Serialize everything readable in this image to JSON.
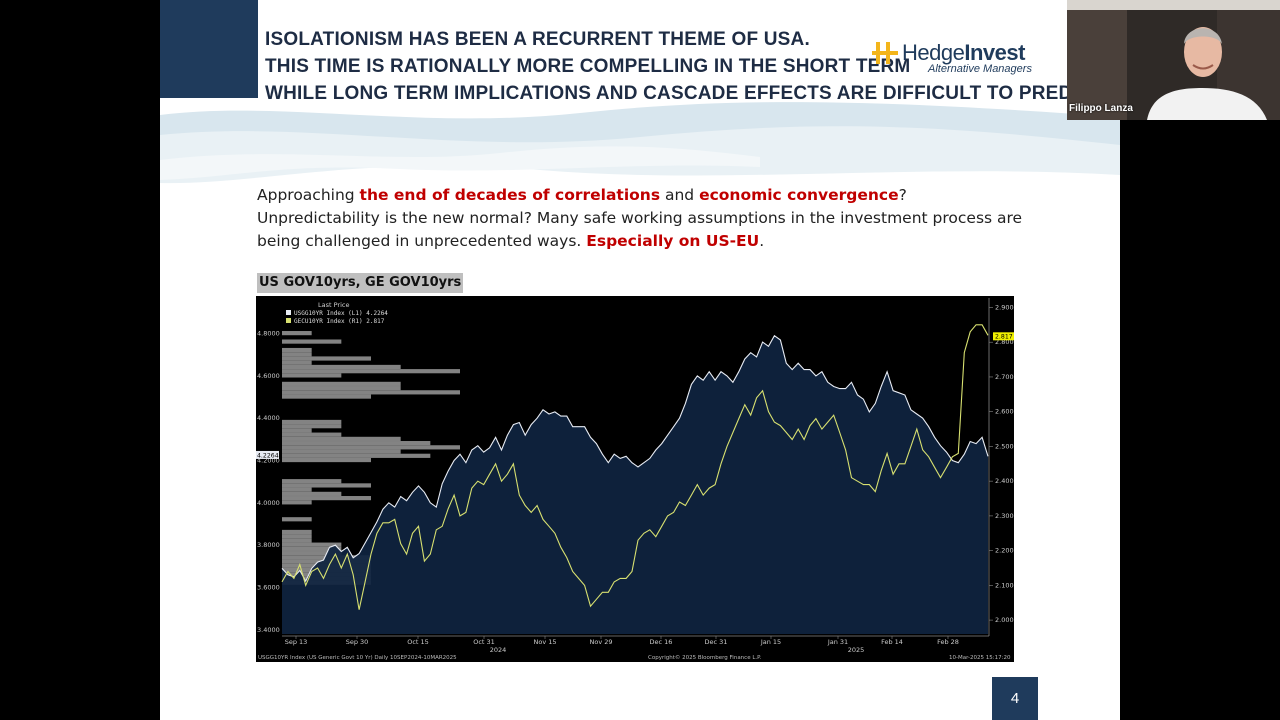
{
  "slide": {
    "title_lines": [
      "ISOLATIONISM HAS BEEN A RECURRENT THEME OF USA.",
      "THIS TIME IS RATIONALLY MORE COMPELLING IN THE SHORT TERM",
      "WHILE LONG TERM IMPLICATIONS AND CASCADE EFFECTS ARE DIFFICULT TO PREDICT…"
    ],
    "logo": {
      "name_regular": "Hedge",
      "name_bold": "Invest",
      "subtitle": "Alternative Managers"
    },
    "intro": {
      "p1": "Approaching ",
      "h1": "the end of decades of correlations",
      "p2": " and ",
      "h2": "economic convergence",
      "p3": "? Unpredictability is the new normal? Many safe working assumptions in the investment process are being challenged in unprecedented ways. ",
      "h3": "Especially on US-EU",
      "p4": "."
    },
    "chart_caption": "US GOV10yrs, GE GOV10yrs",
    "page_number": "4"
  },
  "webcam": {
    "participant_name": "Filippo Lanza"
  },
  "colors": {
    "slide_blue": "#1f3b5c",
    "highlight_red": "#c00000",
    "us_series": "#e8ecf4",
    "us_fill": "#0f2440",
    "ge_series": "#d7e070",
    "histogram": "#9a9a9a"
  },
  "chart_data": {
    "type": "line",
    "legend": {
      "title": "Last Price",
      "placement": "top-left",
      "entries": [
        "USGG10YR Index (L1) 4.2264",
        "GECU10YR Index (R1) 2.817"
      ]
    },
    "x_tick_labels": [
      "Sep 13",
      "Sep 30",
      "Oct 15",
      "Oct 31",
      "Nov 15",
      "Nov 29",
      "Dec 16",
      "Dec 31",
      "Jan 15",
      "Jan 31",
      "Feb 14",
      "Feb 28"
    ],
    "year_labels": [
      "2024",
      "2025"
    ],
    "left_axis": {
      "ticks": [
        "3.4000",
        "3.6000",
        "3.8000",
        "4.0000",
        "4.2000",
        "4.4000",
        "4.6000",
        "4.8000"
      ],
      "ylim": [
        3.38,
        4.94
      ],
      "last_value_label": "4.2264"
    },
    "right_axis": {
      "ticks": [
        "2.000",
        "2.100",
        "2.200",
        "2.300",
        "2.400",
        "2.500",
        "2.600",
        "2.700",
        "2.800",
        "2.900"
      ],
      "ylim": [
        1.96,
        2.91
      ],
      "last_value_label": "2.817"
    },
    "grid": false,
    "series": [
      {
        "name": "USGG10YR Index",
        "axis": "left",
        "values": [
          3.69,
          3.66,
          3.65,
          3.68,
          3.63,
          3.69,
          3.72,
          3.73,
          3.79,
          3.8,
          3.77,
          3.79,
          3.74,
          3.76,
          3.81,
          3.86,
          3.91,
          3.97,
          4.0,
          3.98,
          4.03,
          4.01,
          4.05,
          4.08,
          4.05,
          4.0,
          3.98,
          4.09,
          4.15,
          4.2,
          4.23,
          4.19,
          4.25,
          4.27,
          4.24,
          4.26,
          4.31,
          4.25,
          4.32,
          4.37,
          4.38,
          4.32,
          4.37,
          4.4,
          4.44,
          4.42,
          4.43,
          4.41,
          4.41,
          4.36,
          4.36,
          4.36,
          4.31,
          4.28,
          4.23,
          4.19,
          4.23,
          4.21,
          4.22,
          4.19,
          4.17,
          4.19,
          4.21,
          4.25,
          4.28,
          4.32,
          4.36,
          4.4,
          4.47,
          4.56,
          4.6,
          4.58,
          4.62,
          4.58,
          4.62,
          4.6,
          4.57,
          4.62,
          4.68,
          4.71,
          4.69,
          4.76,
          4.74,
          4.79,
          4.77,
          4.66,
          4.63,
          4.66,
          4.63,
          4.63,
          4.6,
          4.62,
          4.57,
          4.55,
          4.54,
          4.54,
          4.57,
          4.51,
          4.49,
          4.43,
          4.47,
          4.55,
          4.62,
          4.53,
          4.52,
          4.51,
          4.44,
          4.42,
          4.4,
          4.36,
          4.31,
          4.27,
          4.24,
          4.2,
          4.19,
          4.23,
          4.29,
          4.28,
          4.31,
          4.22
        ],
        "last_value": 4.2264
      },
      {
        "name": "GECU10YR Index",
        "axis": "right",
        "values": [
          2.11,
          2.14,
          2.12,
          2.16,
          2.1,
          2.14,
          2.15,
          2.12,
          2.16,
          2.19,
          2.15,
          2.19,
          2.13,
          2.03,
          2.11,
          2.19,
          2.25,
          2.28,
          2.28,
          2.29,
          2.22,
          2.19,
          2.25,
          2.27,
          2.17,
          2.19,
          2.26,
          2.27,
          2.32,
          2.36,
          2.3,
          2.31,
          2.38,
          2.4,
          2.39,
          2.42,
          2.45,
          2.4,
          2.42,
          2.45,
          2.36,
          2.33,
          2.31,
          2.33,
          2.29,
          2.27,
          2.25,
          2.21,
          2.18,
          2.14,
          2.12,
          2.1,
          2.04,
          2.06,
          2.08,
          2.08,
          2.11,
          2.12,
          2.12,
          2.14,
          2.23,
          2.25,
          2.26,
          2.24,
          2.27,
          2.3,
          2.31,
          2.34,
          2.33,
          2.36,
          2.39,
          2.36,
          2.38,
          2.39,
          2.45,
          2.5,
          2.54,
          2.58,
          2.62,
          2.59,
          2.64,
          2.66,
          2.6,
          2.57,
          2.56,
          2.54,
          2.52,
          2.55,
          2.52,
          2.56,
          2.58,
          2.55,
          2.57,
          2.59,
          2.54,
          2.49,
          2.41,
          2.4,
          2.39,
          2.39,
          2.37,
          2.43,
          2.48,
          2.42,
          2.45,
          2.45,
          2.5,
          2.55,
          2.49,
          2.47,
          2.44,
          2.41,
          2.44,
          2.47,
          2.48,
          2.77,
          2.83,
          2.85,
          2.85,
          2.82
        ],
        "last_value": 2.817
      }
    ],
    "histogram": {
      "axis": "left",
      "bins": [
        3.62,
        3.64,
        3.66,
        3.68,
        3.7,
        3.72,
        3.74,
        3.76,
        3.78,
        3.8,
        3.82,
        3.84,
        3.86,
        3.88,
        3.9,
        3.92,
        3.94,
        3.96,
        3.98,
        4.0,
        4.02,
        4.04,
        4.06,
        4.08,
        4.1,
        4.12,
        4.14,
        4.16,
        4.18,
        4.2,
        4.22,
        4.24,
        4.26,
        4.28,
        4.3,
        4.32,
        4.34,
        4.36,
        4.38,
        4.4,
        4.42,
        4.44,
        4.46,
        4.48,
        4.5,
        4.52,
        4.54,
        4.56,
        4.58,
        4.6,
        4.62,
        4.64,
        4.66,
        4.68,
        4.7,
        4.72,
        4.74,
        4.76,
        4.78,
        4.8
      ],
      "counts": [
        3,
        3,
        3,
        3,
        3,
        3,
        3,
        2,
        2,
        2,
        1,
        1,
        1,
        0,
        0,
        1,
        0,
        0,
        0,
        1,
        3,
        2,
        1,
        3,
        2,
        0,
        0,
        0,
        0,
        3,
        5,
        4,
        6,
        5,
        4,
        2,
        1,
        2,
        2,
        0,
        0,
        0,
        0,
        0,
        3,
        6,
        4,
        4,
        0,
        2,
        6,
        4,
        1,
        3,
        1,
        1,
        0,
        2,
        0,
        1
      ]
    }
  }
}
